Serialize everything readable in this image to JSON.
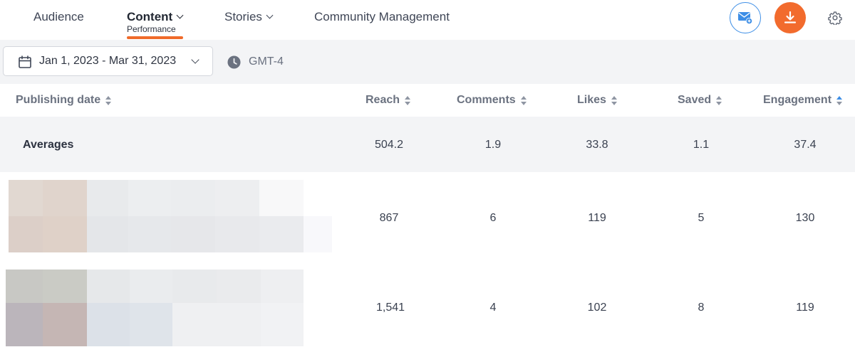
{
  "nav": {
    "audience": "Audience",
    "content": "Content",
    "content_sub": "Performance",
    "stories": "Stories",
    "community": "Community Management",
    "active_color": "#f06a2a"
  },
  "actions": {
    "mail_icon": "mail-plus-icon",
    "download_icon": "download-icon",
    "settings_icon": "gear-icon",
    "accent_blue": "#3d8ee6",
    "accent_orange": "#f26b2d"
  },
  "filters": {
    "date_range": "Jan 1, 2023 - Mar 31, 2023",
    "timezone": "GMT-4"
  },
  "table": {
    "columns": [
      "Publishing date",
      "Reach",
      "Comments",
      "Likes",
      "Saved",
      "Engagement"
    ],
    "sorted_column": "Engagement",
    "averages": {
      "label": "Averages",
      "reach": "504.2",
      "comments": "1.9",
      "likes": "33.8",
      "saved": "1.1",
      "engagement": "37.4"
    },
    "rows": [
      {
        "reach": "867",
        "comments": "6",
        "likes": "119",
        "saved": "5",
        "engagement": "130"
      },
      {
        "reach": "1,541",
        "comments": "4",
        "likes": "102",
        "saved": "8",
        "engagement": "119"
      }
    ]
  }
}
